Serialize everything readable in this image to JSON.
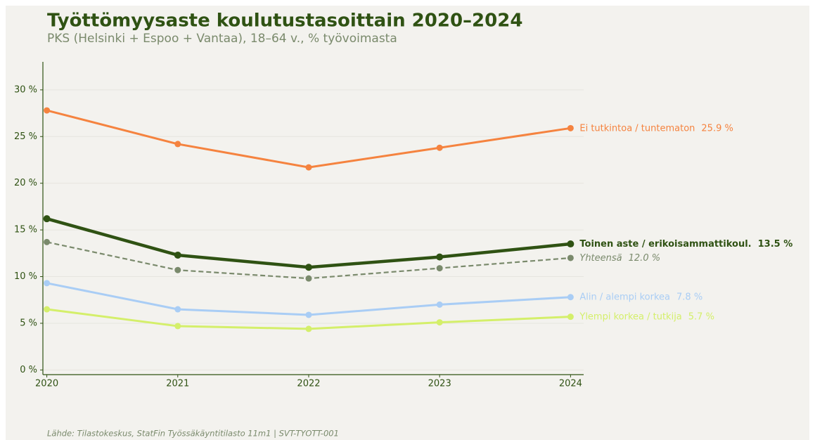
{
  "chart_data": {
    "type": "line",
    "title": "Työttömyysaste koulutustasoittain 2020–2024",
    "subtitle": "PKS (Helsinki + Espoo + Vantaa), 18–64 v., % työvoimasta",
    "source": "Lähde: Tilastokeskus, StatFin Työssäkäyntitilasto 11m1 | SVT-TYOTT-001",
    "x": [
      2020,
      2021,
      2022,
      2023,
      2024
    ],
    "xlim": [
      2019.97,
      2024.1
    ],
    "xticks": [
      2020,
      2021,
      2022,
      2023,
      2024
    ],
    "ylim": [
      -0.5,
      33
    ],
    "yticks": [
      {
        "value": 0,
        "label": "0 %"
      },
      {
        "value": 5,
        "label": "5 %"
      },
      {
        "value": 10,
        "label": "10 %"
      },
      {
        "value": 15,
        "label": "15 %"
      },
      {
        "value": 20,
        "label": "20 %"
      },
      {
        "value": 25,
        "label": "25 %"
      },
      {
        "value": 30,
        "label": "30 %"
      }
    ],
    "grid": true,
    "series": [
      {
        "name": "Ei tutkintoa / tuntematon",
        "color": "#f5833f",
        "values": [
          27.8,
          24.2,
          21.7,
          23.8,
          25.9
        ],
        "value_labels": [
          null,
          null,
          null,
          null,
          "25.9 %"
        ]
      },
      {
        "name": "Toinen aste / erikoisammattikoul.",
        "color": "#2f5213",
        "bold": true,
        "values": [
          16.2,
          12.3,
          11.0,
          12.1,
          13.5
        ],
        "value_labels": [
          null,
          null,
          null,
          null,
          "13.5 %"
        ]
      },
      {
        "name": "Yhteensä",
        "color": "#7a8a6c",
        "dash": true,
        "italic": true,
        "values": [
          13.7,
          10.7,
          9.8,
          10.9,
          12.0
        ],
        "value_labels": [
          null,
          null,
          null,
          null,
          "12.0 %"
        ]
      },
      {
        "name": "Alin / alempi korkea",
        "color": "#a9cdf5",
        "values": [
          9.3,
          6.5,
          5.9,
          7.0,
          7.8
        ],
        "value_labels": [
          null,
          null,
          null,
          null,
          "7.8 %"
        ]
      },
      {
        "name": "Ylempi korkea / tutkija",
        "color": "#d4ef6a",
        "values": [
          6.5,
          4.7,
          4.4,
          5.1,
          5.7
        ],
        "value_labels": [
          null,
          null,
          null,
          null,
          "5.7 %"
        ]
      }
    ]
  }
}
